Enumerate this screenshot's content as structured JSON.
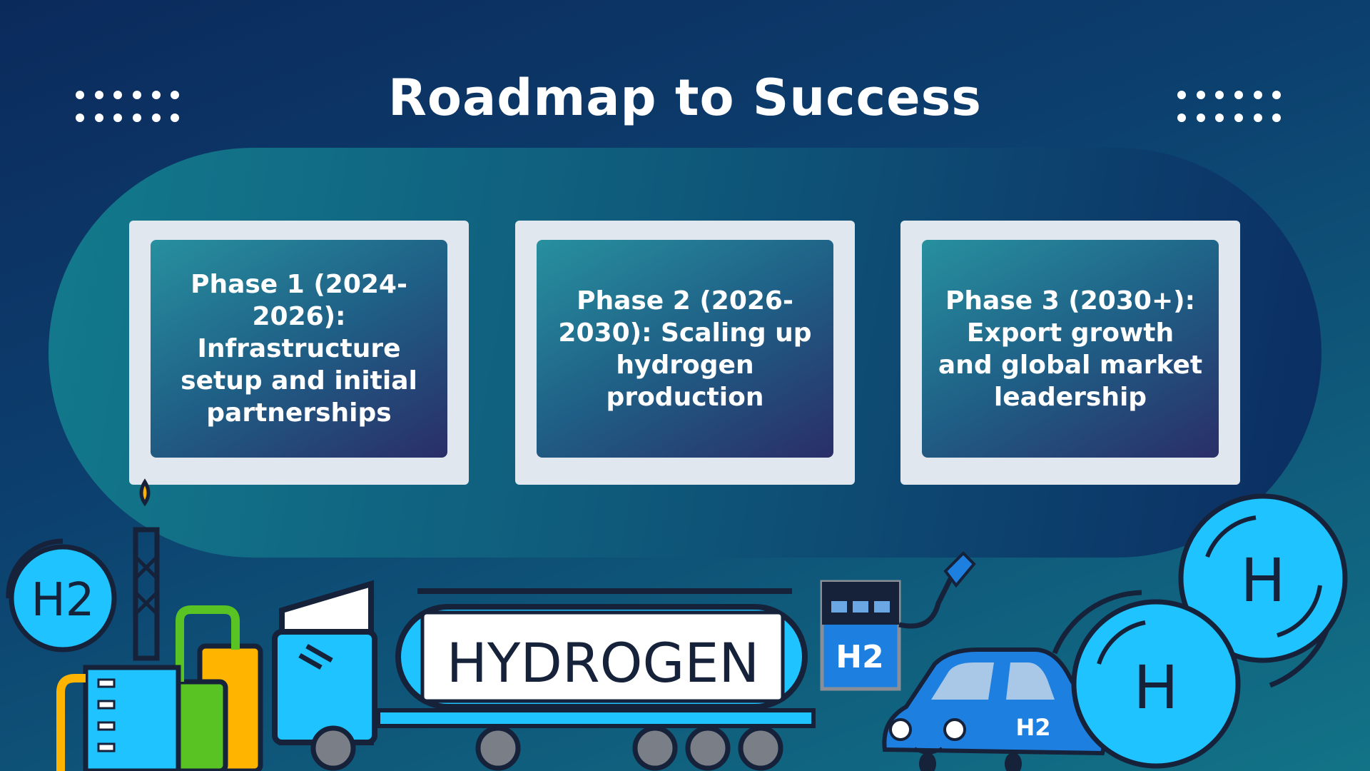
{
  "slide": {
    "title": "Roadmap to Success"
  },
  "phases": [
    {
      "text": "Phase 1 (2024-2026): Infrastructure setup and initial partnerships"
    },
    {
      "text": "Phase 2 (2026-2030): Scaling up hydrogen production"
    },
    {
      "text": "Phase 3 (2030+): Export growth and global market leadership"
    }
  ],
  "illustrations": {
    "molecule_small_label": "H2",
    "tanker_label": "HYDROGEN",
    "pump_label": "H2",
    "car_label": "H2",
    "atom_label_1": "H",
    "atom_label_2": "H"
  },
  "colors": {
    "accent": "#1ec3ff",
    "card_frame": "#e1e7ee",
    "background": "#0c3f6e"
  }
}
